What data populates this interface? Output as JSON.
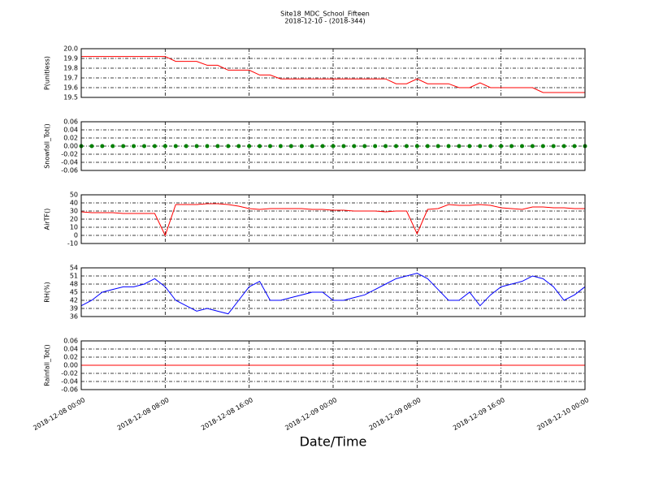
{
  "chart_data": [
    {
      "type": "line",
      "title": "Site18_MDC_School_Fifteen",
      "subtitle": "2018-12-10 - (2018-344)",
      "ylabel": "P(unitless)",
      "color": "#ff0000",
      "grid": true,
      "x": [
        0,
        1,
        2,
        3,
        4,
        5,
        6,
        7,
        8,
        9,
        10,
        11,
        12,
        13,
        14,
        15,
        16,
        17,
        18,
        19,
        20,
        21,
        22,
        23,
        24,
        25,
        26,
        27,
        28,
        29,
        30,
        31,
        32,
        33,
        34,
        35,
        36,
        37,
        38,
        39,
        40,
        41,
        42,
        43,
        44,
        45,
        46,
        47,
        48
      ],
      "values": [
        19.92,
        19.92,
        19.92,
        19.92,
        19.92,
        19.92,
        19.92,
        19.92,
        19.92,
        19.87,
        19.87,
        19.87,
        19.83,
        19.83,
        19.78,
        19.78,
        19.78,
        19.73,
        19.73,
        19.69,
        19.69,
        19.69,
        19.69,
        19.69,
        19.69,
        19.69,
        19.69,
        19.69,
        19.69,
        19.69,
        19.64,
        19.64,
        19.69,
        19.64,
        19.64,
        19.64,
        19.6,
        19.6,
        19.65,
        19.6,
        19.6,
        19.6,
        19.6,
        19.6,
        19.55,
        19.55,
        19.55,
        19.55,
        19.55
      ],
      "xlim": [
        0,
        48
      ],
      "xticks": [
        0,
        8,
        16,
        24,
        32,
        40,
        48
      ],
      "ylim": [
        19.5,
        20.0
      ],
      "yticks": [
        19.5,
        19.6,
        19.7,
        19.8,
        19.9,
        {
          "value": 20,
          "label": "20.0"
        }
      ]
    },
    {
      "type": "line",
      "ylabel": "Snowfall_Tot()",
      "color": "#008000",
      "marker": true,
      "grid": true,
      "x": [
        0,
        1,
        2,
        3,
        4,
        5,
        6,
        7,
        8,
        9,
        10,
        11,
        12,
        13,
        14,
        15,
        16,
        17,
        18,
        19,
        20,
        21,
        22,
        23,
        24,
        25,
        26,
        27,
        28,
        29,
        30,
        31,
        32,
        33,
        34,
        35,
        36,
        37,
        38,
        39,
        40,
        41,
        42,
        43,
        44,
        45,
        46,
        47,
        48
      ],
      "values": [
        0,
        0,
        0,
        0,
        0,
        0,
        0,
        0,
        0,
        0,
        0,
        0,
        0,
        0,
        0,
        0,
        0,
        0,
        0,
        0,
        0,
        0,
        0,
        0,
        0,
        0,
        0,
        0,
        0,
        0,
        0,
        0,
        0,
        0,
        0,
        0,
        0,
        0,
        0,
        0,
        0,
        0,
        0,
        0,
        0,
        0,
        0,
        0,
        0
      ],
      "xlim": [
        0,
        48
      ],
      "xticks": [
        0,
        8,
        16,
        24,
        32,
        40,
        48
      ],
      "ylim": [
        -0.06,
        0.06
      ],
      "yticks": [
        -0.06,
        -0.04,
        -0.02,
        {
          "value": 0,
          "label": "0.00"
        },
        0.02,
        0.04,
        0.06
      ]
    },
    {
      "type": "line",
      "ylabel": "AirTF()",
      "color": "#ff0000",
      "grid": true,
      "x": [
        0,
        1,
        2,
        3,
        4,
        5,
        6,
        7,
        8,
        9,
        10,
        11,
        12,
        13,
        14,
        15,
        16,
        17,
        18,
        19,
        20,
        21,
        22,
        23,
        24,
        25,
        26,
        27,
        28,
        29,
        30,
        31,
        32,
        33,
        34,
        35,
        36,
        37,
        38,
        39,
        40,
        41,
        42,
        43,
        44,
        45,
        46,
        47,
        48
      ],
      "values": [
        29,
        28,
        28,
        28,
        27,
        27,
        27,
        27,
        0,
        38,
        38,
        38,
        39,
        39,
        38,
        36,
        33,
        32,
        33,
        33,
        33,
        33,
        32,
        32,
        31,
        31,
        30,
        30,
        30,
        29,
        30,
        30,
        2,
        32,
        33,
        38,
        37,
        37,
        38,
        37,
        34,
        33,
        32,
        35,
        35,
        34,
        34,
        33,
        33
      ],
      "xlim": [
        0,
        48
      ],
      "xticks": [
        0,
        8,
        16,
        24,
        32,
        40,
        48
      ],
      "ylim": [
        -10,
        50
      ],
      "yticks": [
        -10,
        0,
        10,
        20,
        30,
        40,
        50
      ]
    },
    {
      "type": "line",
      "ylabel": "RH(%)",
      "color": "#0000ff",
      "grid": true,
      "x": [
        0,
        1,
        2,
        3,
        4,
        5,
        6,
        7,
        8,
        9,
        10,
        11,
        12,
        13,
        14,
        15,
        16,
        17,
        18,
        19,
        20,
        21,
        22,
        23,
        24,
        25,
        26,
        27,
        28,
        29,
        30,
        31,
        32,
        33,
        34,
        35,
        36,
        37,
        38,
        39,
        40,
        41,
        42,
        43,
        44,
        45,
        46,
        47,
        48
      ],
      "values": [
        40,
        42,
        45,
        46,
        47,
        47,
        48,
        50,
        47,
        42,
        40,
        38,
        39,
        38,
        37,
        42,
        47,
        49,
        42,
        42,
        43,
        44,
        45,
        45,
        42,
        42,
        43,
        44,
        46,
        48,
        50,
        51,
        52,
        50,
        46,
        42,
        42,
        45,
        40,
        44,
        47,
        48,
        49,
        51,
        50,
        47,
        42,
        44,
        47
      ],
      "xlim": [
        0,
        48
      ],
      "xticks": [
        0,
        8,
        16,
        24,
        32,
        40,
        48
      ],
      "ylim": [
        36,
        54
      ],
      "yticks": [
        36,
        39,
        42,
        45,
        48,
        51,
        54
      ]
    },
    {
      "type": "line",
      "ylabel": "Rainfall_Tot()",
      "xlabel": "Date/Time",
      "color": "#ff0000",
      "grid": true,
      "x": [
        0,
        1,
        2,
        3,
        4,
        5,
        6,
        7,
        8,
        9,
        10,
        11,
        12,
        13,
        14,
        15,
        16,
        17,
        18,
        19,
        20,
        21,
        22,
        23,
        24,
        25,
        26,
        27,
        28,
        29,
        30,
        31,
        32,
        33,
        34,
        35,
        36,
        37,
        38,
        39,
        40,
        41,
        42,
        43,
        44,
        45,
        46,
        47,
        48
      ],
      "values": [
        0,
        0,
        0,
        0,
        0,
        0,
        0,
        0,
        0,
        0,
        0,
        0,
        0,
        0,
        0,
        0,
        0,
        0,
        0,
        0,
        0,
        0,
        0,
        0,
        0,
        0,
        0,
        0,
        0,
        0,
        0,
        0,
        0,
        0,
        0,
        0,
        0,
        0,
        0,
        0,
        0,
        0,
        0,
        0,
        0,
        0,
        0,
        0,
        0
      ],
      "xlim": [
        0,
        48
      ],
      "xticks": [
        {
          "value": 0,
          "label": "2018-12-08 00:00"
        },
        {
          "value": 8,
          "label": "2018-12-08 08:00"
        },
        {
          "value": 16,
          "label": "2018-12-08 16:00"
        },
        {
          "value": 24,
          "label": "2018-12-09 00:00"
        },
        {
          "value": 32,
          "label": "2018-12-09 08:00"
        },
        {
          "value": 40,
          "label": "2018-12-09 16:00"
        },
        {
          "value": 48,
          "label": "2018-12-10 00:00"
        }
      ],
      "ylim": [
        -0.06,
        0.06
      ],
      "yticks": [
        -0.06,
        -0.04,
        -0.02,
        {
          "value": 0,
          "label": "0.00"
        },
        0.02,
        0.04,
        0.06
      ]
    }
  ]
}
